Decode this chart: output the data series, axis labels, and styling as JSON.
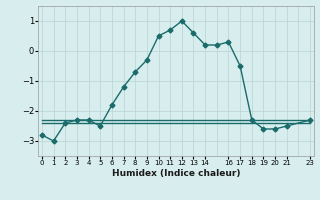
{
  "xlabel": "Humidex (Indice chaleur)",
  "x": [
    0,
    1,
    2,
    3,
    4,
    5,
    6,
    7,
    8,
    9,
    10,
    11,
    12,
    13,
    14,
    15,
    16,
    17,
    18,
    19,
    20,
    21,
    23
  ],
  "y_main": [
    -2.8,
    -3.0,
    -2.4,
    -2.3,
    -2.3,
    -2.5,
    -1.8,
    -1.2,
    -0.7,
    -0.3,
    0.5,
    0.7,
    1.0,
    0.6,
    0.2,
    0.2,
    0.3,
    -0.5,
    -2.3,
    -2.6,
    -2.6,
    -2.5,
    -2.3
  ],
  "y_flat1": [
    -2.3,
    -2.3,
    -2.3,
    -2.3,
    -2.3,
    -2.3,
    -2.3,
    -2.3,
    -2.3,
    -2.3,
    -2.3,
    -2.3,
    -2.3,
    -2.3,
    -2.3,
    -2.3,
    -2.3,
    -2.3,
    -2.3,
    -2.3,
    -2.3,
    -2.3,
    -2.3
  ],
  "y_flat2": [
    -2.4,
    -2.4,
    -2.4,
    -2.4,
    -2.4,
    -2.4,
    -2.4,
    -2.4,
    -2.4,
    -2.4,
    -2.4,
    -2.4,
    -2.4,
    -2.4,
    -2.4,
    -2.4,
    -2.4,
    -2.4,
    -2.4,
    -2.4,
    -2.4,
    -2.4,
    -2.4
  ],
  "color": "#1a6b6b",
  "bg_color": "#d8eeee",
  "grid_color": "#b8d4d4",
  "ylim": [
    -3.5,
    1.5
  ],
  "yticks": [
    -3,
    -2,
    -1,
    0,
    1
  ],
  "marker": "D",
  "marker_size": 2.5,
  "linewidth": 1.0,
  "x_all": [
    0,
    1,
    2,
    3,
    4,
    5,
    6,
    7,
    8,
    9,
    10,
    11,
    12,
    13,
    14,
    15,
    16,
    17,
    18,
    19,
    20,
    21,
    22,
    23
  ],
  "xtick_positions": [
    0,
    1,
    2,
    3,
    4,
    5,
    6,
    7,
    8,
    9,
    10,
    11,
    12,
    13,
    14,
    16,
    17,
    18,
    19,
    20,
    21,
    23
  ],
  "xtick_labels": [
    "0",
    "1",
    "2",
    "3",
    "4",
    "5",
    "6",
    "7",
    "8",
    "9",
    "10",
    "11",
    "12",
    "13",
    "14",
    "16",
    "17",
    "18",
    "19",
    "20",
    "21",
    "23"
  ]
}
